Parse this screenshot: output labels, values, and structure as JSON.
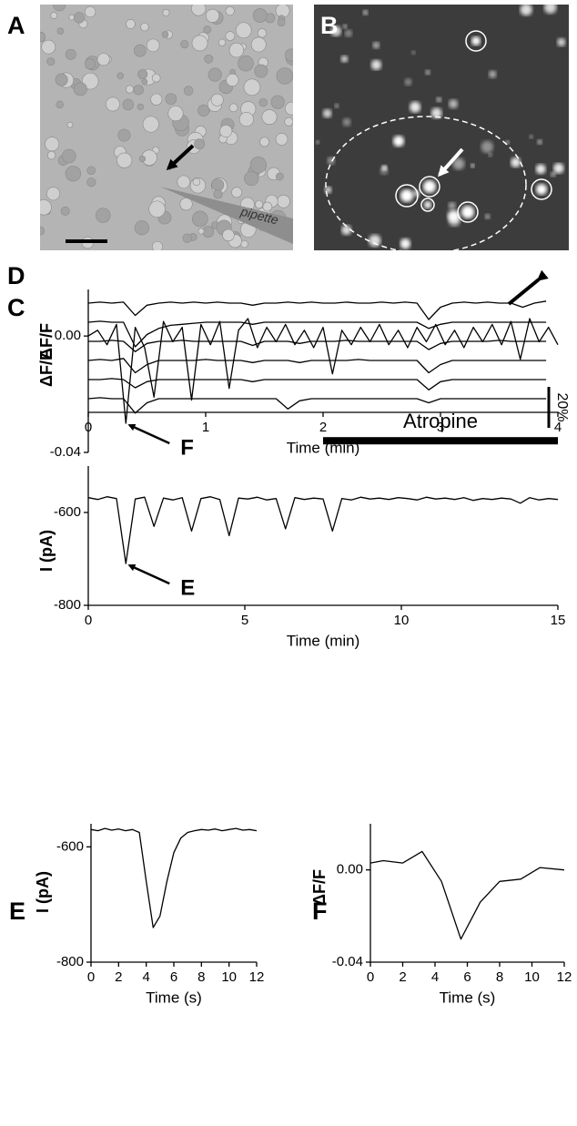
{
  "panel_labels": [
    "A",
    "B",
    "C",
    "D",
    "E",
    "F"
  ],
  "image_label": "pipette",
  "chart_data": [
    {
      "type": "line",
      "xlabel": "Time (min)",
      "ylabel": "ΔF/F",
      "x": [
        0,
        0.1,
        0.2,
        0.3,
        0.4,
        0.5,
        0.6,
        0.7,
        0.8,
        0.9,
        1,
        1.1,
        1.2,
        1.3,
        1.4,
        1.5,
        1.6,
        1.7,
        1.8,
        1.9,
        2,
        2.1,
        2.2,
        2.3,
        2.4,
        2.5,
        2.6,
        2.7,
        2.8,
        2.9,
        3,
        3.1,
        3.2,
        3.3,
        3.4,
        3.5,
        3.6,
        3.7,
        3.8,
        3.9
      ],
      "xlim": [
        0,
        4
      ],
      "xticks": [
        0,
        1,
        2,
        3,
        4
      ],
      "series": [
        {
          "color": "#000000",
          "values": [
            0,
            0.5,
            0,
            0.5,
            -6,
            -1,
            0,
            0.5,
            0,
            0.5,
            0,
            0.5,
            0,
            0,
            -1,
            0,
            0,
            0.5,
            0,
            0.5,
            0,
            0,
            0.5,
            0,
            0,
            0.5,
            0,
            0.5,
            0,
            -8,
            -2,
            0,
            0.5,
            0,
            0.5,
            0,
            0,
            -2,
            0,
            1
          ]
        },
        {
          "color": "#000000",
          "values": [
            0,
            0.5,
            0,
            0,
            -12,
            -6,
            -3,
            -1.5,
            -1,
            -0.5,
            0,
            0,
            0,
            0,
            -1,
            0,
            0,
            0,
            0,
            0,
            0,
            0,
            0,
            0,
            0,
            0,
            0,
            0,
            0,
            -3,
            -1,
            0,
            0,
            0,
            0,
            0,
            0,
            0,
            0,
            0
          ]
        },
        {
          "color": "#000000",
          "values": [
            0,
            0,
            0.5,
            0,
            -5,
            -1,
            0,
            0,
            0.5,
            0,
            0,
            0,
            0,
            0,
            -2,
            0,
            0,
            0,
            -1,
            0,
            0,
            0,
            0.5,
            0,
            0,
            0,
            0,
            0,
            0,
            -4,
            -1,
            0,
            0,
            0,
            0,
            0.5,
            0,
            0,
            0,
            0
          ]
        },
        {
          "color": "#000000",
          "values": [
            0,
            0.5,
            0,
            1,
            -6,
            -2,
            0,
            0,
            0,
            0,
            0.5,
            0,
            0,
            0,
            -1,
            0,
            0,
            0,
            -1,
            0,
            0,
            0,
            0,
            0.5,
            0,
            0,
            0,
            0,
            0,
            -6,
            -2,
            0,
            0,
            0,
            0,
            0,
            0,
            0,
            0,
            0
          ]
        },
        {
          "color": "#000000",
          "values": [
            0,
            0,
            0.5,
            0,
            -4,
            -1,
            0,
            0,
            0,
            0,
            0,
            0,
            0,
            0,
            -1,
            0,
            0,
            0,
            0,
            0,
            0,
            0,
            0,
            0,
            0,
            0,
            0,
            0,
            0,
            -5,
            -1,
            0,
            0,
            0,
            0,
            0,
            0,
            0,
            0,
            0
          ]
        },
        {
          "color": "#000000",
          "values": [
            0,
            0.5,
            0,
            0,
            -7,
            -2,
            0,
            0,
            0,
            0,
            0,
            0,
            0,
            0,
            0,
            0,
            0,
            -5,
            -1,
            0,
            0,
            0,
            0,
            0,
            0,
            0,
            0,
            0,
            0,
            -2,
            0,
            0,
            0,
            0,
            0,
            0,
            0,
            0,
            0,
            0
          ]
        }
      ],
      "scale_bar": {
        "value": 20,
        "label": "20%"
      }
    },
    {
      "type": "line",
      "ylabel": "ΔF/F",
      "x": [
        0,
        0.3,
        0.6,
        0.9,
        1.2,
        1.5,
        1.8,
        2.1,
        2.4,
        2.7,
        3,
        3.3,
        3.6,
        3.9,
        4.2,
        4.5,
        4.8,
        5.1,
        5.4,
        5.7,
        6,
        6.3,
        6.6,
        6.9,
        7.2,
        7.5,
        7.8,
        8.1,
        8.4,
        8.7,
        9,
        9.3,
        9.6,
        9.9,
        10.2,
        10.5,
        10.8,
        11.1,
        11.4,
        11.7,
        12,
        12.3,
        12.6,
        12.9,
        13.2,
        13.5,
        13.8,
        14.1,
        14.4,
        14.7,
        15
      ],
      "xlim": [
        0,
        15
      ],
      "ylim": [
        -0.04,
        0.016
      ],
      "yticks": [
        {
          "value": 0,
          "label": "0.00"
        },
        -0.04
      ],
      "series": [
        {
          "color": "#000000",
          "values": [
            0,
            0.002,
            -0.003,
            0.004,
            -0.03,
            0.003,
            -0.004,
            -0.021,
            0.005,
            -0.002,
            0.003,
            -0.022,
            0.004,
            -0.003,
            0.005,
            -0.018,
            0.002,
            0.006,
            -0.004,
            0.003,
            -0.002,
            0.004,
            -0.003,
            0.002,
            -0.004,
            0.003,
            -0.013,
            0.002,
            -0.003,
            0.003,
            -0.002,
            0.004,
            -0.003,
            0.002,
            -0.004,
            0.003,
            -0.002,
            0.004,
            -0.003,
            0.002,
            -0.004,
            0.003,
            -0.002,
            0.004,
            -0.003,
            0.005,
            -0.008,
            0.006,
            -0.002,
            0.003,
            -0.003
          ]
        }
      ],
      "bar": {
        "label": "Atropine",
        "x": [
          7.5,
          15
        ],
        "y": -0.036
      },
      "annotations": [
        {
          "text": "F",
          "x": 1.2,
          "y": -0.03
        }
      ]
    },
    {
      "type": "line",
      "ylabel": "I (pA)",
      "xlabel": "Time (min)",
      "x": [
        0,
        0.3,
        0.6,
        0.9,
        1.2,
        1.5,
        1.8,
        2.1,
        2.4,
        2.7,
        3,
        3.3,
        3.6,
        3.9,
        4.2,
        4.5,
        4.8,
        5.1,
        5.4,
        5.7,
        6,
        6.3,
        6.6,
        6.9,
        7.2,
        7.5,
        7.8,
        8.1,
        8.4,
        8.7,
        9,
        9.3,
        9.6,
        9.9,
        10.2,
        10.5,
        10.8,
        11.1,
        11.4,
        11.7,
        12,
        12.3,
        12.6,
        12.9,
        13.2,
        13.5,
        13.8,
        14.1,
        14.4,
        14.7,
        15
      ],
      "xlim": [
        0,
        15
      ],
      "xticks": [
        0,
        5,
        10,
        15
      ],
      "ylim": [
        -800,
        -500
      ],
      "yticks": [
        -600,
        -800
      ],
      "series": [
        {
          "color": "#000000",
          "values": [
            -568,
            -572,
            -566,
            -570,
            -710,
            -571,
            -567,
            -630,
            -569,
            -573,
            -568,
            -640,
            -570,
            -566,
            -572,
            -650,
            -569,
            -571,
            -567,
            -573,
            -570,
            -635,
            -568,
            -572,
            -569,
            -571,
            -640,
            -570,
            -573,
            -567,
            -571,
            -569,
            -572,
            -568,
            -570,
            -573,
            -567,
            -571,
            -569,
            -572,
            -568,
            -574,
            -570,
            -572,
            -569,
            -571,
            -580,
            -568,
            -573,
            -570,
            -572
          ]
        }
      ],
      "annotations": [
        {
          "text": "E",
          "x": 1.2,
          "y": -710
        }
      ]
    },
    {
      "type": "line",
      "ylabel": "I (pA)",
      "xlabel": "Time (s)",
      "x": [
        0,
        0.5,
        1,
        1.5,
        2,
        2.5,
        3,
        3.5,
        4,
        4.5,
        5,
        5.5,
        6,
        6.5,
        7,
        7.5,
        8,
        8.5,
        9,
        9.5,
        10,
        10.5,
        11,
        11.5,
        12
      ],
      "xlim": [
        0,
        12
      ],
      "xticks": [
        0,
        2,
        4,
        6,
        8,
        10,
        12
      ],
      "ylim": [
        -800,
        -560
      ],
      "yticks": [
        -600,
        -800
      ],
      "series": [
        {
          "color": "#000000",
          "values": [
            -570,
            -572,
            -568,
            -571,
            -569,
            -572,
            -570,
            -575,
            -660,
            -740,
            -720,
            -660,
            -610,
            -585,
            -575,
            -572,
            -570,
            -571,
            -569,
            -572,
            -570,
            -568,
            -571,
            -570,
            -572
          ]
        }
      ]
    },
    {
      "type": "line",
      "ylabel": "ΔF/F",
      "xlabel": "Time (s)",
      "x": [
        0,
        0.8,
        2,
        3.2,
        4.4,
        5.6,
        6.8,
        8,
        9.3,
        10.5,
        12
      ],
      "xlim": [
        0,
        12
      ],
      "xticks": [
        0,
        2,
        4,
        6,
        8,
        10,
        12
      ],
      "ylim": [
        -0.04,
        0.02
      ],
      "yticks": [
        {
          "value": 0,
          "label": "0.00"
        },
        -0.04
      ],
      "series": [
        {
          "color": "#000000",
          "values": [
            0.003,
            0.004,
            0.003,
            0.008,
            -0.005,
            -0.03,
            -0.014,
            -0.005,
            -0.004,
            0.001,
            0
          ]
        }
      ]
    }
  ]
}
